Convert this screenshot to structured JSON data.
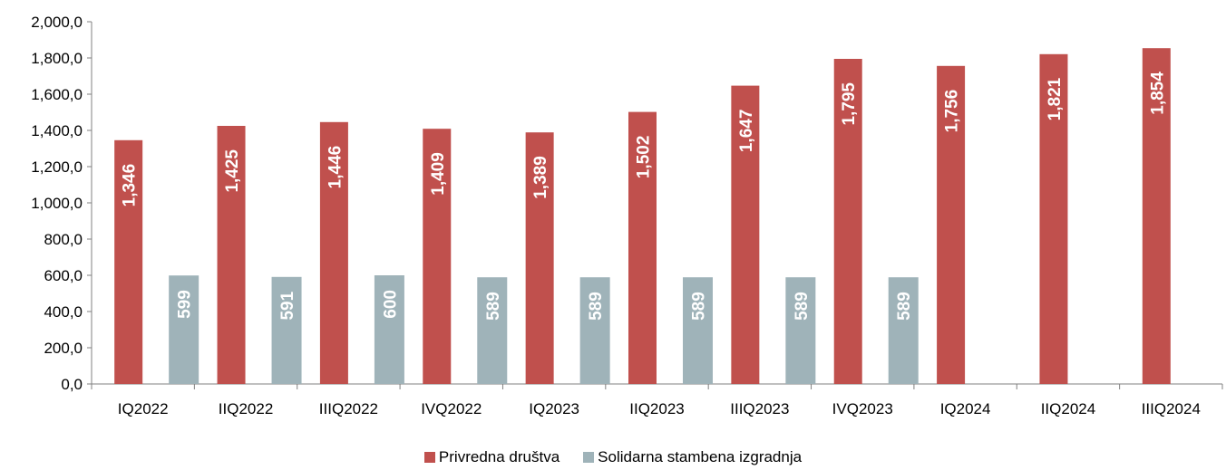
{
  "chart_data": {
    "type": "bar",
    "categories": [
      "IQ2022",
      "IIQ2022",
      "IIIQ2022",
      "IVQ2022",
      "IQ2023",
      "IIQ2023",
      "IIIQ2023",
      "IVQ2023",
      "IQ2024",
      "IIQ2024",
      "IIIQ2024"
    ],
    "series": [
      {
        "name": "Privredna društva",
        "color": "#C0504D",
        "values": [
          1346,
          1425,
          1446,
          1409,
          1389,
          1502,
          1647,
          1795,
          1756,
          1821,
          1854
        ],
        "labels": [
          "1,346",
          "1,425",
          "1,446",
          "1,409",
          "1,389",
          "1,502",
          "1,647",
          "1,795",
          "1,756",
          "1,821",
          "1,854"
        ]
      },
      {
        "name": "Solidarna stambena izgradnja",
        "color": "#9FB3B9",
        "values": [
          599,
          591,
          600,
          589,
          589,
          589,
          589,
          589,
          null,
          null,
          null
        ],
        "labels": [
          "599",
          "591",
          "600",
          "589",
          "589",
          "589",
          "589",
          "589",
          null,
          null,
          null
        ]
      }
    ],
    "ylim": [
      0,
      2000
    ],
    "yticks": [
      0,
      200,
      400,
      600,
      800,
      1000,
      1200,
      1400,
      1600,
      1800,
      2000
    ],
    "ytick_labels": [
      "0,0",
      "200,0",
      "400,0",
      "600,0",
      "800,0",
      "1,000,0",
      "1,200,0",
      "1,400,0",
      "1,600,0",
      "1,800,0",
      "2,000,0"
    ],
    "grid": false,
    "legend": "bottom"
  }
}
